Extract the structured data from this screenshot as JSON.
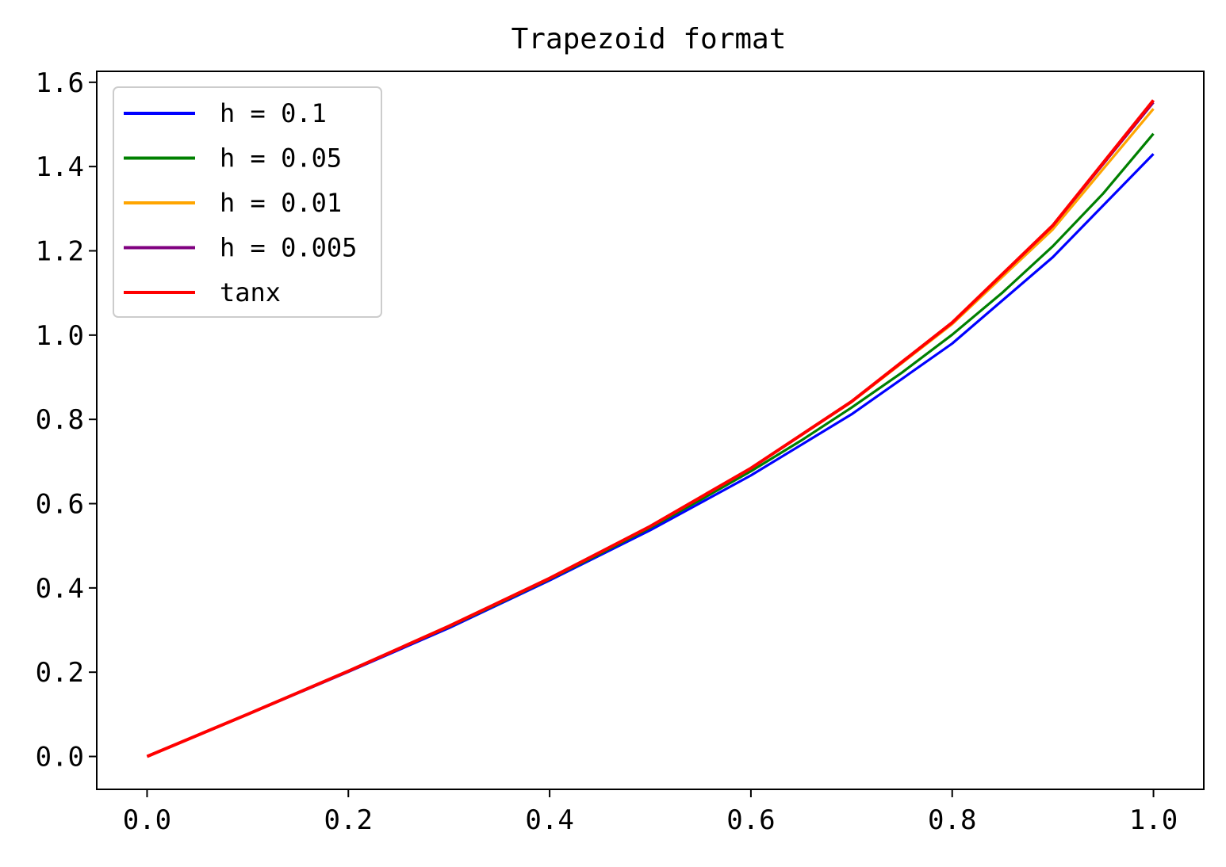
{
  "chart_data": {
    "type": "line",
    "title": "Trapezoid format",
    "xlabel": "",
    "ylabel": "",
    "xlim": [
      -0.05,
      1.05
    ],
    "ylim": [
      -0.078,
      1.626
    ],
    "xticks": [
      0.0,
      0.2,
      0.4,
      0.6,
      0.8,
      1.0
    ],
    "xtick_labels": [
      "0.0",
      "0.2",
      "0.4",
      "0.6",
      "0.8",
      "1.0"
    ],
    "yticks": [
      0.0,
      0.2,
      0.4,
      0.6,
      0.8,
      1.0,
      1.2,
      1.4,
      1.6
    ],
    "ytick_labels": [
      "0.0",
      "0.2",
      "0.4",
      "0.6",
      "0.8",
      "1.0",
      "1.2",
      "1.4",
      "1.6"
    ],
    "grid": false,
    "legend_position": "top-left",
    "series": [
      {
        "name": "h = 0.1",
        "color": "#0000ff",
        "x": [
          0.0,
          0.1,
          0.2,
          0.3,
          0.4,
          0.5,
          0.6,
          0.7,
          0.8,
          0.9,
          1.0
        ],
        "y": [
          0.0,
          0.1,
          0.201,
          0.305,
          0.418,
          0.537,
          0.667,
          0.812,
          0.98,
          1.185,
          1.43
        ]
      },
      {
        "name": "h = 0.05",
        "color": "#008000",
        "x": [
          0.0,
          0.05,
          0.1,
          0.15,
          0.2,
          0.25,
          0.3,
          0.35,
          0.4,
          0.45,
          0.5,
          0.55,
          0.6,
          0.65,
          0.7,
          0.75,
          0.8,
          0.85,
          0.9,
          0.95,
          1.0
        ],
        "y": [
          0.0,
          0.05,
          0.1,
          0.151,
          0.202,
          0.255,
          0.308,
          0.364,
          0.421,
          0.481,
          0.543,
          0.609,
          0.677,
          0.75,
          0.828,
          0.911,
          1.001,
          1.101,
          1.211,
          1.336,
          1.478
        ]
      },
      {
        "name": "h = 0.01",
        "color": "#ffa500",
        "x": [
          0.0,
          0.1,
          0.2,
          0.3,
          0.4,
          0.5,
          0.6,
          0.7,
          0.8,
          0.9,
          1.0
        ],
        "y": [
          0.0,
          0.1,
          0.203,
          0.309,
          0.423,
          0.546,
          0.684,
          0.841,
          1.026,
          1.251,
          1.537
        ]
      },
      {
        "name": "h = 0.005",
        "color": "#800080",
        "x": [
          0.0,
          0.1,
          0.2,
          0.3,
          0.4,
          0.5,
          0.6,
          0.7,
          0.8,
          0.9,
          1.0
        ],
        "y": [
          0.0,
          0.1,
          0.203,
          0.309,
          0.423,
          0.546,
          0.684,
          0.842,
          1.029,
          1.259,
          1.552
        ]
      },
      {
        "name": "tanx",
        "color": "#ff0000",
        "x": [
          0.0,
          0.1,
          0.2,
          0.3,
          0.4,
          0.5,
          0.6,
          0.7,
          0.8,
          0.9,
          1.0
        ],
        "y": [
          0.0,
          0.1003,
          0.2027,
          0.3093,
          0.4228,
          0.5463,
          0.6841,
          0.8423,
          1.0296,
          1.2602,
          1.5574
        ]
      }
    ]
  }
}
